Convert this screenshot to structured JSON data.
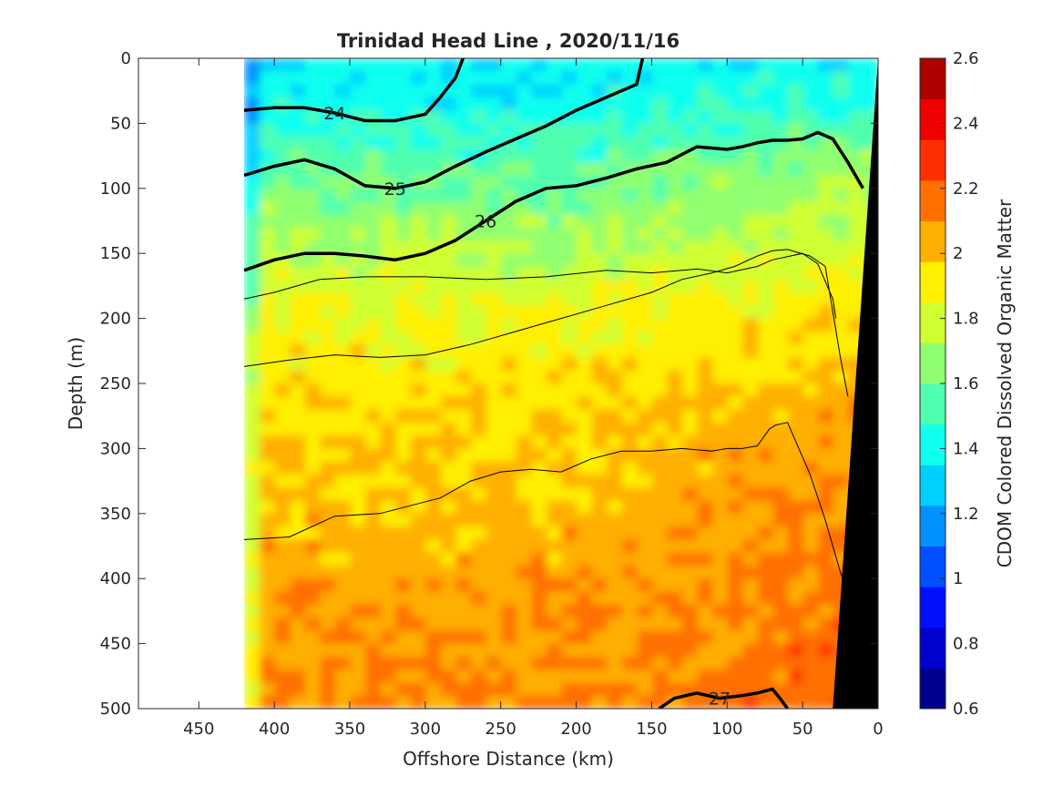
{
  "chart_data": {
    "type": "heatmap",
    "title": "Trinidad Head Line , 2020/11/16",
    "xlabel": "Offshore Distance (km)",
    "ylabel": "Depth (m)",
    "colorbar_label": "CDOM Colored Dissolved Organic Matter",
    "x_reversed": true,
    "y_reversed": true,
    "xlim": [
      0,
      490
    ],
    "ylim": [
      0,
      500
    ],
    "x_ticks": [
      450,
      400,
      350,
      300,
      250,
      200,
      150,
      100,
      50,
      0
    ],
    "y_ticks": [
      0,
      50,
      100,
      150,
      200,
      250,
      300,
      350,
      400,
      450,
      500
    ],
    "color_range": [
      0.6,
      2.6
    ],
    "colorbar_ticks": [
      2.6,
      2.4,
      2.2,
      2,
      1.8,
      1.6,
      1.4,
      1.2,
      1,
      0.8,
      0.6
    ],
    "colormap": [
      "#00008f",
      "#0000cf",
      "#0010ff",
      "#0050ff",
      "#0090ff",
      "#00d0ff",
      "#10ffef",
      "#50ffaf",
      "#90ff6f",
      "#cfff30",
      "#ffef00",
      "#ffaf00",
      "#ff7000",
      "#ff3000",
      "#ef0000",
      "#af0000"
    ],
    "data_extent_x": [
      0,
      420
    ],
    "value_profile": {
      "depth": [
        0,
        30,
        60,
        90,
        120,
        150,
        180,
        220,
        270,
        320,
        380,
        440,
        500
      ],
      "cdom_offshore": [
        1.35,
        1.4,
        1.48,
        1.58,
        1.66,
        1.74,
        1.82,
        1.9,
        1.96,
        2.0,
        2.04,
        2.08,
        2.12
      ],
      "cdom_nearshore": [
        1.4,
        1.48,
        1.62,
        1.72,
        1.78,
        1.82,
        1.9,
        1.98,
        2.05,
        2.1,
        2.15,
        2.18,
        2.2
      ]
    },
    "isopycnals_bold": [
      {
        "label": "24",
        "x": [
          420,
          400,
          380,
          360,
          340,
          320,
          300,
          290,
          280,
          275
        ],
        "y": [
          40,
          38,
          38,
          42,
          48,
          48,
          43,
          30,
          15,
          0
        ]
      },
      {
        "label": "25",
        "x": [
          420,
          400,
          380,
          360,
          340,
          320,
          300,
          280,
          260,
          240,
          220,
          200,
          180,
          160,
          156
        ],
        "y": [
          90,
          83,
          78,
          85,
          98,
          100,
          95,
          83,
          72,
          62,
          52,
          40,
          30,
          20,
          0
        ]
      },
      {
        "label": "26",
        "x": [
          420,
          400,
          380,
          360,
          340,
          320,
          300,
          280,
          260,
          240,
          220,
          200,
          180,
          160,
          140,
          120,
          100,
          90,
          80,
          70,
          60,
          50,
          40,
          30,
          20,
          10
        ],
        "y": [
          163,
          155,
          150,
          150,
          152,
          155,
          150,
          140,
          125,
          110,
          100,
          98,
          92,
          85,
          80,
          68,
          70,
          68,
          65,
          63,
          63,
          62,
          57,
          62,
          80,
          100
        ]
      },
      {
        "label": "27",
        "x": [
          145,
          135,
          120,
          105,
          90,
          80,
          70,
          65,
          60
        ],
        "y": [
          500,
          492,
          488,
          492,
          490,
          488,
          485,
          492,
          500
        ]
      }
    ],
    "isopycnals_thin": [
      {
        "x": [
          420,
          400,
          370,
          340,
          300,
          260,
          220,
          180,
          150,
          120,
          100,
          80,
          70,
          50,
          40,
          30,
          28
        ],
        "y": [
          185,
          180,
          170,
          168,
          168,
          170,
          168,
          163,
          165,
          162,
          165,
          160,
          155,
          150,
          158,
          185,
          200
        ]
      },
      {
        "x": [
          420,
          390,
          360,
          330,
          300,
          270,
          240,
          210,
          180,
          150,
          130,
          110,
          95,
          80,
          70,
          60,
          45,
          35,
          25,
          20
        ],
        "y": [
          237,
          232,
          228,
          230,
          228,
          220,
          210,
          200,
          190,
          180,
          170,
          165,
          160,
          152,
          148,
          147,
          152,
          160,
          230,
          260
        ]
      },
      {
        "x": [
          420,
          390,
          360,
          330,
          310,
          290,
          270,
          250,
          230,
          210,
          190,
          170,
          150,
          130,
          110,
          100,
          90,
          80,
          72,
          68,
          60,
          45,
          35,
          25,
          15
        ],
        "y": [
          370,
          368,
          352,
          350,
          344,
          338,
          325,
          318,
          316,
          318,
          308,
          302,
          302,
          300,
          302,
          300,
          300,
          298,
          285,
          282,
          280,
          320,
          355,
          395,
          430
        ]
      }
    ]
  }
}
